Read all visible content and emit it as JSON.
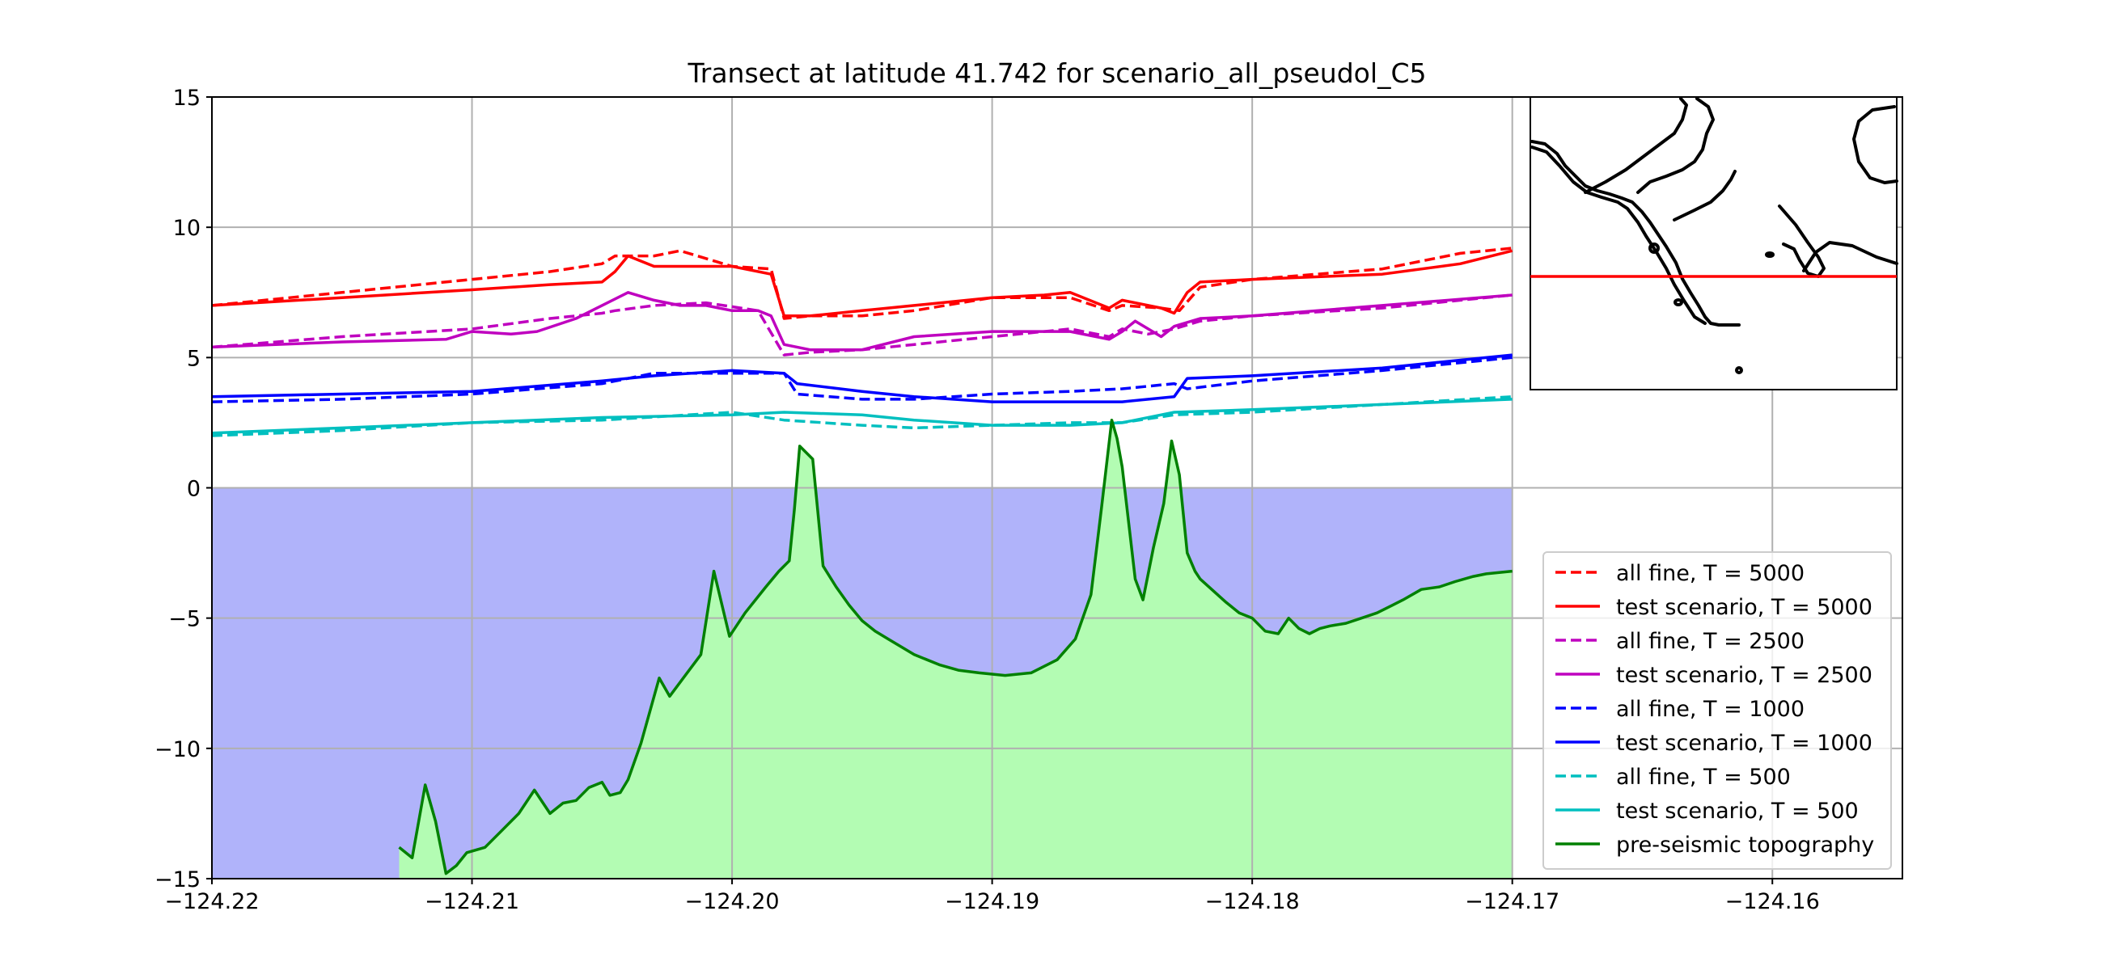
{
  "chart_data": {
    "type": "line",
    "title": "Transect at latitude 41.742 for scenario_all_pseudol_C5",
    "xlabel": "",
    "ylabel": "",
    "xlim": [
      -124.22,
      -124.155
    ],
    "ylim": [
      -15,
      15
    ],
    "xticks": [
      -124.22,
      -124.21,
      -124.2,
      -124.19,
      -124.18,
      -124.17,
      -124.16
    ],
    "xtick_labels": [
      "−124.22",
      "−124.21",
      "−124.20",
      "−124.19",
      "−124.18",
      "−124.17",
      "−124.16"
    ],
    "yticks": [
      -15,
      -10,
      -5,
      0,
      5,
      10,
      15
    ],
    "ytick_labels": [
      "−15",
      "−10",
      "−5",
      "0",
      "5",
      "10",
      "15"
    ],
    "grid": true,
    "legend_position": "lower-right",
    "water_fill": {
      "color": "#b0b3fa",
      "level": 0
    },
    "land_fill": {
      "color": "#b3fcb3"
    },
    "series": [
      {
        "name": "all fine, T = 5000",
        "color": "#ff0000",
        "dash": true,
        "x": [
          -124.22,
          -124.215,
          -124.21,
          -124.207,
          -124.205,
          -124.2045,
          -124.203,
          -124.202,
          -124.2,
          -124.1985,
          -124.198,
          -124.197,
          -124.195,
          -124.193,
          -124.19,
          -124.188,
          -124.187,
          -124.1855,
          -124.185,
          -124.1835,
          -124.1828,
          -124.182,
          -124.18,
          -124.175,
          -124.172,
          -124.17
        ],
        "y": [
          7.0,
          7.5,
          8.0,
          8.3,
          8.6,
          8.9,
          8.9,
          9.1,
          8.5,
          8.4,
          6.5,
          6.6,
          6.6,
          6.8,
          7.3,
          7.3,
          7.3,
          6.8,
          7.0,
          6.9,
          6.8,
          7.7,
          8.0,
          8.4,
          9.0,
          9.2
        ]
      },
      {
        "name": "test scenario, T = 5000",
        "color": "#ff0000",
        "dash": false,
        "x": [
          -124.22,
          -124.215,
          -124.21,
          -124.207,
          -124.205,
          -124.2045,
          -124.204,
          -124.203,
          -124.202,
          -124.2,
          -124.1985,
          -124.198,
          -124.197,
          -124.195,
          -124.193,
          -124.19,
          -124.188,
          -124.187,
          -124.1855,
          -124.185,
          -124.1835,
          -124.183,
          -124.1825,
          -124.182,
          -124.18,
          -124.175,
          -124.172,
          -124.17
        ],
        "y": [
          7.0,
          7.3,
          7.6,
          7.8,
          7.9,
          8.3,
          8.9,
          8.5,
          8.5,
          8.5,
          8.2,
          6.6,
          6.6,
          6.8,
          7.0,
          7.3,
          7.4,
          7.5,
          6.9,
          7.2,
          6.9,
          6.7,
          7.5,
          7.9,
          8.0,
          8.2,
          8.6,
          9.1
        ]
      },
      {
        "name": "all fine, T = 2500",
        "color": "#bf00bf",
        "dash": true,
        "x": [
          -124.22,
          -124.215,
          -124.21,
          -124.207,
          -124.205,
          -124.2045,
          -124.203,
          -124.201,
          -124.199,
          -124.198,
          -124.197,
          -124.195,
          -124.193,
          -124.19,
          -124.187,
          -124.1855,
          -124.185,
          -124.184,
          -124.183,
          -124.182,
          -124.18,
          -124.175,
          -124.17
        ],
        "y": [
          5.4,
          5.8,
          6.1,
          6.5,
          6.7,
          6.8,
          7.0,
          7.1,
          6.8,
          5.1,
          5.2,
          5.3,
          5.5,
          5.8,
          6.1,
          5.8,
          6.1,
          5.9,
          6.1,
          6.4,
          6.6,
          6.9,
          7.4
        ]
      },
      {
        "name": "test scenario, T = 2500",
        "color": "#bf00bf",
        "dash": false,
        "x": [
          -124.22,
          -124.215,
          -124.211,
          -124.21,
          -124.2085,
          -124.2075,
          -124.206,
          -124.205,
          -124.204,
          -124.203,
          -124.202,
          -124.201,
          -124.2,
          -124.199,
          -124.1985,
          -124.198,
          -124.197,
          -124.195,
          -124.193,
          -124.19,
          -124.188,
          -124.187,
          -124.1855,
          -124.185,
          -124.1845,
          -124.1835,
          -124.183,
          -124.182,
          -124.18,
          -124.175,
          -124.17
        ],
        "y": [
          5.4,
          5.6,
          5.7,
          6.0,
          5.9,
          6.0,
          6.5,
          7.0,
          7.5,
          7.2,
          7.0,
          7.0,
          6.8,
          6.8,
          6.6,
          5.5,
          5.3,
          5.3,
          5.8,
          6.0,
          6.0,
          6.0,
          5.7,
          6.0,
          6.4,
          5.8,
          6.2,
          6.5,
          6.6,
          7.0,
          7.4
        ]
      },
      {
        "name": "all fine, T = 1000",
        "color": "#0000ff",
        "dash": true,
        "x": [
          -124.22,
          -124.215,
          -124.21,
          -124.205,
          -124.203,
          -124.2,
          -124.198,
          -124.1975,
          -124.195,
          -124.193,
          -124.19,
          -124.187,
          -124.185,
          -124.183,
          -124.1825,
          -124.18,
          -124.175,
          -124.17
        ],
        "y": [
          3.3,
          3.4,
          3.6,
          4.0,
          4.4,
          4.4,
          4.4,
          3.6,
          3.4,
          3.4,
          3.6,
          3.7,
          3.8,
          4.0,
          3.8,
          4.1,
          4.5,
          5.0
        ]
      },
      {
        "name": "test scenario, T = 1000",
        "color": "#0000ff",
        "dash": false,
        "x": [
          -124.22,
          -124.215,
          -124.21,
          -124.205,
          -124.203,
          -124.2,
          -124.198,
          -124.1975,
          -124.195,
          -124.193,
          -124.19,
          -124.187,
          -124.185,
          -124.183,
          -124.1825,
          -124.18,
          -124.175,
          -124.17
        ],
        "y": [
          3.5,
          3.6,
          3.7,
          4.1,
          4.3,
          4.5,
          4.4,
          4.0,
          3.7,
          3.5,
          3.3,
          3.3,
          3.3,
          3.5,
          4.2,
          4.3,
          4.6,
          5.1
        ]
      },
      {
        "name": "all fine, T =  500",
        "color": "#00bfbf",
        "dash": true,
        "x": [
          -124.22,
          -124.215,
          -124.21,
          -124.205,
          -124.2,
          -124.198,
          -124.195,
          -124.193,
          -124.19,
          -124.187,
          -124.185,
          -124.183,
          -124.18,
          -124.175,
          -124.17
        ],
        "y": [
          2.0,
          2.2,
          2.5,
          2.6,
          2.9,
          2.6,
          2.4,
          2.3,
          2.4,
          2.5,
          2.5,
          2.8,
          2.9,
          3.2,
          3.5
        ]
      },
      {
        "name": "test scenario, T =  500",
        "color": "#00bfbf",
        "dash": false,
        "x": [
          -124.22,
          -124.215,
          -124.21,
          -124.205,
          -124.2,
          -124.198,
          -124.195,
          -124.193,
          -124.19,
          -124.187,
          -124.185,
          -124.183,
          -124.18,
          -124.175,
          -124.17
        ],
        "y": [
          2.1,
          2.3,
          2.5,
          2.7,
          2.8,
          2.9,
          2.8,
          2.6,
          2.4,
          2.4,
          2.5,
          2.9,
          3.0,
          3.2,
          3.4
        ]
      },
      {
        "name": "pre-seismic topography",
        "color": "#008000",
        "dash": false,
        "x": [
          -124.2128,
          -124.2123,
          -124.2118,
          -124.2114,
          -124.211,
          -124.2106,
          -124.2102,
          -124.2095,
          -124.2088,
          -124.2082,
          -124.2076,
          -124.207,
          -124.2065,
          -124.206,
          -124.2055,
          -124.205,
          -124.2047,
          -124.2043,
          -124.204,
          -124.2035,
          -124.2028,
          -124.2024,
          -124.2018,
          -124.2012,
          -124.2007,
          -124.2001,
          -124.1995,
          -124.1987,
          -124.1982,
          -124.1978,
          -124.1976,
          -124.1974,
          -124.1969,
          -124.1965,
          -124.196,
          -124.1955,
          -124.195,
          -124.1945,
          -124.194,
          -124.1935,
          -124.193,
          -124.192,
          -124.1913,
          -124.1905,
          -124.1895,
          -124.1885,
          -124.1875,
          -124.1868,
          -124.1862,
          -124.1858,
          -124.1854,
          -124.1852,
          -124.185,
          -124.1845,
          -124.1842,
          -124.1838,
          -124.1834,
          -124.1831,
          -124.1828,
          -124.1825,
          -124.1822,
          -124.182,
          -124.181,
          -124.1805,
          -124.18,
          -124.1795,
          -124.179,
          -124.1786,
          -124.1782,
          -124.1778,
          -124.1774,
          -124.177,
          -124.1764,
          -124.1758,
          -124.1752,
          -124.1746,
          -124.1742,
          -124.1735,
          -124.1728,
          -124.1722,
          -124.1715,
          -124.171,
          -124.17
        ],
        "y": [
          -13.8,
          -14.2,
          -11.4,
          -12.8,
          -14.8,
          -14.5,
          -14.0,
          -13.8,
          -13.1,
          -12.5,
          -11.6,
          -12.5,
          -12.1,
          -12.0,
          -11.5,
          -11.3,
          -11.8,
          -11.7,
          -11.2,
          -9.8,
          -7.3,
          -8.0,
          -7.2,
          -6.4,
          -3.2,
          -5.7,
          -4.8,
          -3.8,
          -3.2,
          -2.8,
          -0.8,
          1.6,
          1.1,
          -3.0,
          -3.8,
          -4.5,
          -5.1,
          -5.5,
          -5.8,
          -6.1,
          -6.4,
          -6.8,
          -7.0,
          -7.1,
          -7.2,
          -7.1,
          -6.6,
          -5.8,
          -4.1,
          -0.8,
          2.6,
          1.9,
          0.8,
          -3.5,
          -4.3,
          -2.3,
          -0.6,
          1.8,
          0.5,
          -2.5,
          -3.2,
          -3.5,
          -4.4,
          -4.8,
          -5.0,
          -5.5,
          -5.6,
          -5.0,
          -5.4,
          -5.6,
          -5.4,
          -5.3,
          -5.2,
          -5.0,
          -4.8,
          -4.5,
          -4.3,
          -3.9,
          -3.8,
          -3.6,
          -3.4,
          -3.3,
          -3.2
        ]
      }
    ],
    "inset_map": {
      "transect_color": "#ff0000",
      "coast_color": "#000000"
    }
  }
}
